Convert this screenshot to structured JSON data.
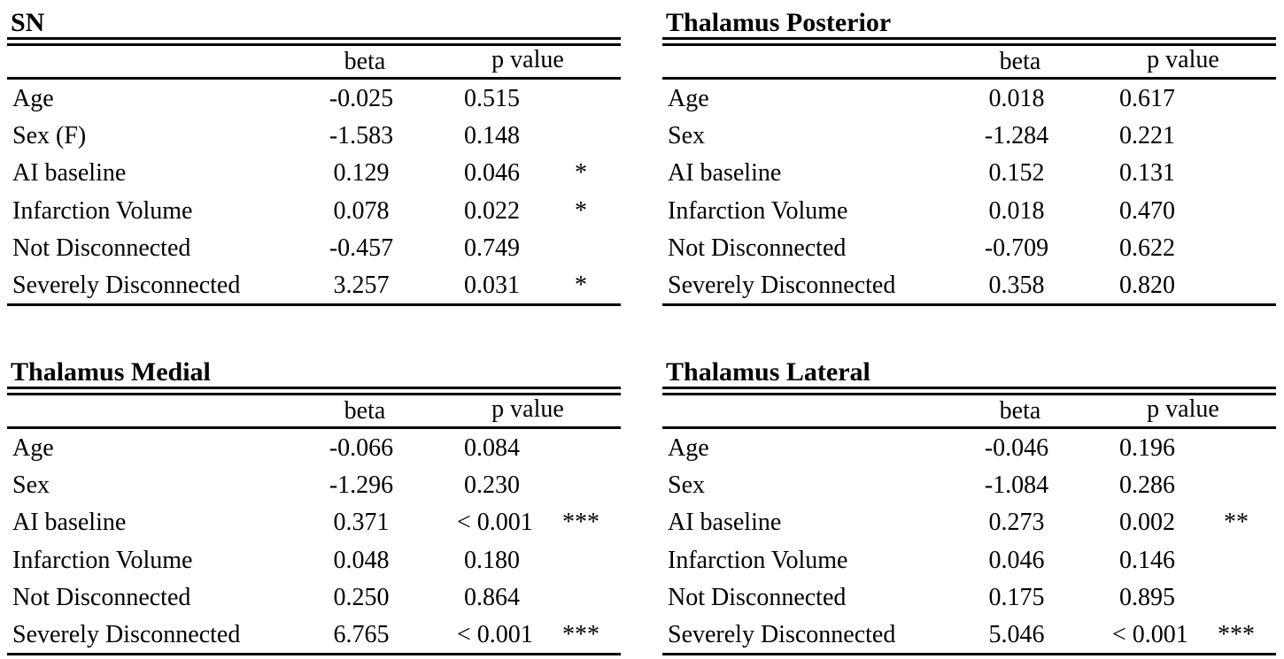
{
  "tables": [
    {
      "title": "SN",
      "header": [
        "beta",
        "p value"
      ],
      "rows": [
        {
          "label": "Age",
          "beta": "-0.025",
          "p": "0.515"
        },
        {
          "label": "Sex (F)",
          "beta": "-1.583",
          "p": "0.148"
        },
        {
          "label": "AI baseline",
          "beta": "0.129",
          "p": "0.046",
          "sig": "*"
        },
        {
          "label": "Infarction Volume",
          "beta": "0.078",
          "p": "0.022",
          "sig": "*"
        },
        {
          "label": "Not Disconnected",
          "beta": "-0.457",
          "p": "0.749"
        },
        {
          "label": "Severely Disconnected",
          "beta": "3.257",
          "p": "0.031",
          "sig": "*"
        }
      ]
    },
    {
      "title": "Thalamus Posterior",
      "header": [
        "beta",
        "p value"
      ],
      "rows": [
        {
          "label": "Age",
          "beta": "0.018",
          "p": "0.617"
        },
        {
          "label": "Sex",
          "beta": "-1.284",
          "p": "0.221"
        },
        {
          "label": "AI baseline",
          "beta": "0.152",
          "p": "0.131"
        },
        {
          "label": "Infarction Volume",
          "beta": "0.018",
          "p": "0.470"
        },
        {
          "label": "Not Disconnected",
          "beta": "-0.709",
          "p": "0.622"
        },
        {
          "label": "Severely Disconnected",
          "beta": "0.358",
          "p": "0.820"
        }
      ]
    },
    {
      "title": "Thalamus Medial",
      "header": [
        "beta",
        "p value"
      ],
      "rows": [
        {
          "label": "Age",
          "beta": "-0.066",
          "p": "0.084"
        },
        {
          "label": "Sex",
          "beta": "-1.296",
          "p": "0.230"
        },
        {
          "label": "AI baseline",
          "beta": "0.371",
          "p": "< 0.001",
          "sig": "***"
        },
        {
          "label": "Infarction Volume",
          "beta": "0.048",
          "p": "0.180"
        },
        {
          "label": "Not Disconnected",
          "beta": "0.250",
          "p": "0.864"
        },
        {
          "label": "Severely Disconnected",
          "beta": "6.765",
          "p": "< 0.001",
          "sig": "***"
        }
      ]
    },
    {
      "title": "Thalamus Lateral",
      "header": [
        "beta",
        "p value"
      ],
      "rows": [
        {
          "label": "Age",
          "beta": "-0.046",
          "p": "0.196"
        },
        {
          "label": "Sex",
          "beta": "-1.084",
          "p": "0.286"
        },
        {
          "label": "AI baseline",
          "beta": "0.273",
          "p": "0.002",
          "sig": "**"
        },
        {
          "label": "Infarction Volume",
          "beta": "0.046",
          "p": "0.146"
        },
        {
          "label": "Not Disconnected",
          "beta": "0.175",
          "p": "0.895"
        },
        {
          "label": "Severely Disconnected",
          "beta": "5.046",
          "p": "< 0.001",
          "sig": "***"
        }
      ]
    }
  ]
}
